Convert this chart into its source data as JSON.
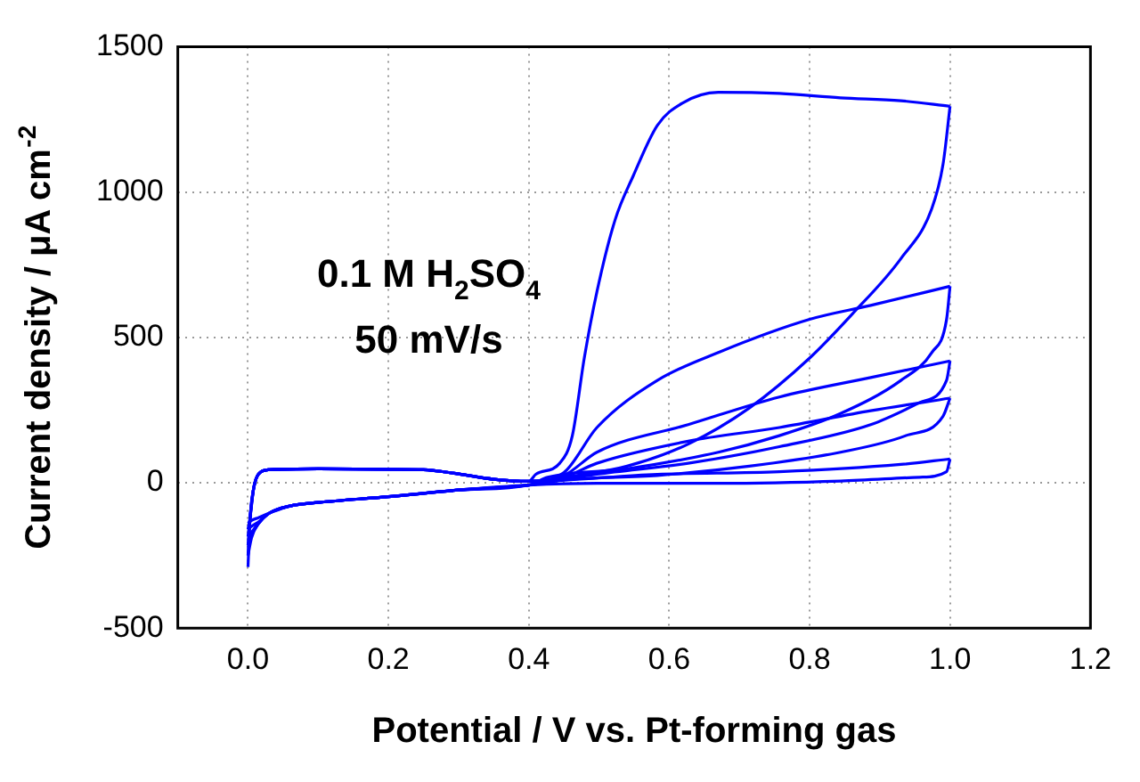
{
  "chart_data": {
    "type": "line",
    "xlabel": "Potential / V vs. Pt-forming gas",
    "ylabel": "Current density / μA cm$^{-2}$",
    "annotations": [
      "0.1 M H$_{2}$SO$_{4}$",
      "50 mV/s"
    ],
    "xlim": [
      -0.1,
      1.2
    ],
    "xticks": [
      {
        "value": 0,
        "label": "0.0"
      },
      0.2,
      0.4,
      0.6,
      0.8,
      {
        "value": 1,
        "label": "1.0"
      },
      1.2
    ],
    "ylim": [
      -500,
      1500
    ],
    "yticks": [
      -500,
      0,
      500,
      1000,
      1500
    ],
    "grid": true,
    "legend": false,
    "marker": "none",
    "line_style": "solid",
    "series": [
      {
        "color": "#0000ff",
        "x": [
          0,
          0.003,
          0.008,
          0.015,
          0.03,
          0.1,
          0.2,
          0.25,
          0.3,
          0.35,
          0.4,
          0.41,
          0.444,
          0.462,
          0.479,
          0.497,
          0.523,
          0.549,
          0.583,
          0.618,
          0.67,
          0.757,
          0.844,
          0.93,
          1.0
        ],
        "values": [
          -290,
          -120,
          -20,
          30,
          45,
          48,
          46,
          45,
          30,
          12,
          5,
          29,
          67,
          162,
          429,
          657,
          905,
          1057,
          1229,
          1305,
          1343,
          1339,
          1324,
          1314,
          1295
        ]
      },
      {
        "color": "#0000ff",
        "x": [
          0,
          0.005,
          0.015,
          0.03,
          0.06,
          0.1,
          0.2,
          0.3,
          0.4,
          0.453,
          0.54,
          0.627,
          0.714,
          0.8,
          0.861,
          0.93,
          0.974,
          0.99,
          1.0
        ],
        "values": [
          -250,
          -190,
          -140,
          -105,
          -80,
          -68,
          -48,
          -25,
          -8,
          19,
          57,
          133,
          257,
          429,
          581,
          771,
          943,
          1095,
          1295
        ]
      },
      {
        "color": "#0000ff",
        "x": [
          0,
          0.003,
          0.008,
          0.015,
          0.03,
          0.1,
          0.2,
          0.25,
          0.3,
          0.35,
          0.4,
          0.45,
          0.497,
          0.583,
          0.67,
          0.8,
          0.887,
          1.0
        ],
        "values": [
          -250,
          -120,
          -20,
          30,
          45,
          48,
          46,
          45,
          30,
          12,
          5,
          35,
          190,
          352,
          448,
          562,
          610,
          676
        ]
      },
      {
        "color": "#0000ff",
        "x": [
          0,
          0.005,
          0.015,
          0.03,
          0.06,
          0.1,
          0.2,
          0.3,
          0.4,
          0.427,
          0.54,
          0.67,
          0.757,
          0.844,
          0.93,
          0.974,
          0.995,
          1.0
        ],
        "values": [
          -215,
          -180,
          -140,
          -105,
          -80,
          -68,
          -48,
          -25,
          -8,
          19,
          48,
          105,
          162,
          238,
          352,
          448,
          561,
          676
        ]
      },
      {
        "color": "#0000ff",
        "x": [
          0,
          0.003,
          0.008,
          0.015,
          0.03,
          0.1,
          0.2,
          0.25,
          0.3,
          0.35,
          0.4,
          0.45,
          0.497,
          0.627,
          0.757,
          0.887,
          1.0
        ],
        "values": [
          -215,
          -120,
          -20,
          30,
          45,
          48,
          46,
          45,
          30,
          12,
          5,
          25,
          105,
          200,
          295,
          362,
          419
        ]
      },
      {
        "color": "#0000ff",
        "x": [
          0,
          0.005,
          0.015,
          0.03,
          0.06,
          0.1,
          0.2,
          0.3,
          0.4,
          0.497,
          0.627,
          0.757,
          0.887,
          0.957,
          0.995,
          1.0
        ],
        "values": [
          -185,
          -170,
          -140,
          -105,
          -80,
          -68,
          -48,
          -25,
          -8,
          29,
          67,
          124,
          200,
          276,
          352,
          419
        ]
      },
      {
        "color": "#0000ff",
        "x": [
          0,
          0.003,
          0.008,
          0.015,
          0.03,
          0.1,
          0.2,
          0.25,
          0.3,
          0.35,
          0.4,
          0.45,
          0.497,
          0.627,
          0.757,
          0.887,
          1.0
        ],
        "values": [
          -185,
          -120,
          -20,
          30,
          45,
          48,
          46,
          45,
          30,
          12,
          5,
          20,
          67,
          143,
          190,
          248,
          291
        ]
      },
      {
        "color": "#0000ff",
        "x": [
          0,
          0.005,
          0.015,
          0.03,
          0.06,
          0.1,
          0.2,
          0.3,
          0.4,
          0.45,
          0.583,
          0.714,
          0.844,
          0.937,
          0.99,
          1.0
        ],
        "values": [
          -160,
          -150,
          -135,
          -105,
          -80,
          -68,
          -48,
          -25,
          -8,
          10,
          25,
          57,
          105,
          162,
          229,
          291
        ]
      },
      {
        "color": "#0000ff",
        "x": [
          0,
          0.003,
          0.008,
          0.015,
          0.03,
          0.1,
          0.2,
          0.25,
          0.3,
          0.35,
          0.4,
          0.583,
          0.757,
          0.93,
          1.0
        ],
        "values": [
          -160,
          -120,
          -20,
          30,
          45,
          48,
          46,
          45,
          30,
          12,
          5,
          29,
          38,
          63,
          82
        ]
      },
      {
        "color": "#0000ff",
        "x": [
          0,
          0.005,
          0.015,
          0.03,
          0.06,
          0.1,
          0.2,
          0.3,
          0.4,
          0.497,
          0.67,
          0.844,
          0.957,
          0.995,
          1.0
        ],
        "values": [
          -140,
          -130,
          -120,
          -105,
          -80,
          -68,
          -48,
          -25,
          -8,
          -2,
          -2,
          6,
          19,
          38,
          82
        ]
      }
    ]
  }
}
